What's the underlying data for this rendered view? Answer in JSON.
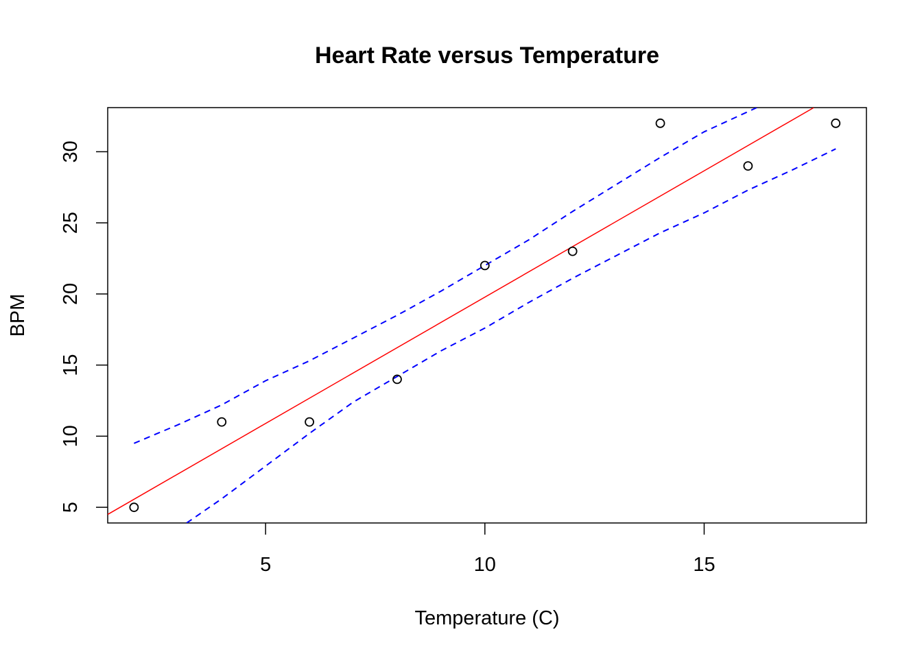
{
  "chart_data": {
    "type": "scatter",
    "title": "Heart Rate versus Temperature",
    "xlabel": "Temperature (C)",
    "ylabel": "BPM",
    "xlim": [
      1.4,
      18.7
    ],
    "ylim": [
      3.9,
      33.1
    ],
    "x_ticks": [
      5,
      10,
      15
    ],
    "y_ticks": [
      5,
      10,
      15,
      20,
      25,
      30
    ],
    "grid": false,
    "points": {
      "x": [
        2,
        4,
        6,
        8,
        10,
        12,
        14,
        16,
        18
      ],
      "y": [
        5,
        11,
        11,
        14,
        22,
        23,
        32,
        29,
        32
      ]
    },
    "fit_line": {
      "color": "#ff0000",
      "x": [
        1.4,
        17.5
      ],
      "y": [
        4.5,
        33.1
      ]
    },
    "confidence_bands": {
      "color": "#0000ff",
      "upper": {
        "x": [
          2,
          3,
          4,
          5,
          6,
          7,
          8,
          9,
          10,
          11,
          12,
          13,
          14,
          15,
          16.2
        ],
        "y": [
          9.5,
          10.8,
          12.2,
          13.9,
          15.3,
          16.9,
          18.5,
          20.2,
          22.0,
          23.8,
          25.8,
          27.7,
          29.6,
          31.4,
          33.1
        ]
      },
      "lower": {
        "x": [
          3.2,
          4,
          5,
          6,
          7,
          8,
          9,
          10,
          11,
          12,
          13,
          14,
          15,
          16,
          17,
          18
        ],
        "y": [
          3.9,
          5.6,
          7.9,
          10.2,
          12.4,
          14.2,
          16.0,
          17.6,
          19.4,
          21.1,
          22.7,
          24.3,
          25.7,
          27.3,
          28.7,
          30.2
        ]
      }
    }
  }
}
